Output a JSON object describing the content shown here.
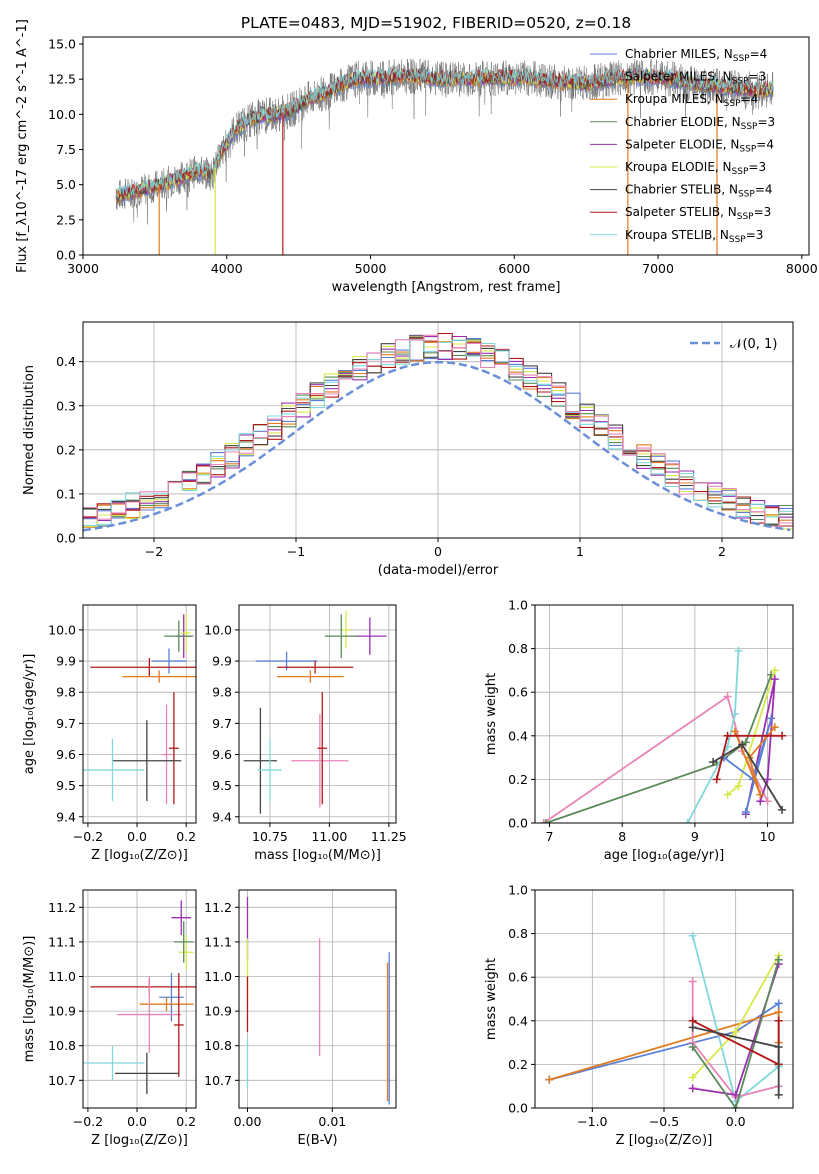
{
  "colors": {
    "chabrier_miles": "#5b7fd6",
    "salpeter_miles": "#8a8a8a",
    "kroupa_miles": "#e07b1f",
    "chabrier_elodie": "#5a8a5a",
    "salpeter_elodie": "#9a30b0",
    "kroupa_elodie": "#d8e84a",
    "chabrier_stelib": "#444444",
    "salpeter_stelib": "#b21818",
    "kroupa_stelib": "#80d8dc",
    "pink": "#e885b8",
    "normal": "#6a8fd8",
    "grid": "#b0b0b0"
  },
  "chart_data": [
    {
      "id": "spectrum",
      "type": "line",
      "title": "PLATE=0483, MJD=51902, FIBERID=0520, z=0.18",
      "xlabel": "wavelength [Angstrom, rest frame]",
      "ylabel": "Flux [f_λ10^-17 erg cm^-2 s^-1 A^-1]",
      "xlim": [
        3000,
        8050
      ],
      "ylim": [
        0,
        15.5
      ],
      "xticks": [
        3000,
        4000,
        5000,
        6000,
        7000,
        8000
      ],
      "yticks": [
        0.0,
        2.5,
        5.0,
        7.5,
        10.0,
        12.5,
        15.0
      ],
      "ytick_labels": [
        "0.0",
        "2.5",
        "5.0",
        "7.5",
        "10.0",
        "12.5",
        "15.0"
      ],
      "grid": false,
      "legend_position": "top-right",
      "legend": [
        {
          "label": "Chabrier MILES, N",
          "sub": "SSP",
          "tail": "=4",
          "color_key": "chabrier_miles"
        },
        {
          "label": "Salpeter MILES, N",
          "sub": "SSP",
          "tail": "=3",
          "color_key": "salpeter_miles"
        },
        {
          "label": "Kroupa MILES, N",
          "sub": "SSP",
          "tail": "=4",
          "color_key": "kroupa_miles"
        },
        {
          "label": "Chabrier ELODIE, N",
          "sub": "SSP",
          "tail": "=3",
          "color_key": "chabrier_elodie"
        },
        {
          "label": "Salpeter ELODIE, N",
          "sub": "SSP",
          "tail": "=4",
          "color_key": "salpeter_elodie"
        },
        {
          "label": "Kroupa ELODIE, N",
          "sub": "SSP",
          "tail": "=3",
          "color_key": "kroupa_elodie"
        },
        {
          "label": "Chabrier STELIB, N",
          "sub": "SSP",
          "tail": "=4",
          "color_key": "chabrier_stelib"
        },
        {
          "label": "Salpeter STELIB, N",
          "sub": "SSP",
          "tail": "=3",
          "color_key": "salpeter_stelib"
        },
        {
          "label": "Kroupa STELIB, N",
          "sub": "SSP",
          "tail": "=3",
          "color_key": "kroupa_stelib"
        }
      ],
      "envelope": [
        [
          3230,
          4.2
        ],
        [
          3400,
          4.6
        ],
        [
          3550,
          5.0
        ],
        [
          3700,
          5.6
        ],
        [
          3800,
          6.0
        ],
        [
          3900,
          5.7
        ],
        [
          3950,
          7.0
        ],
        [
          4050,
          8.8
        ],
        [
          4150,
          9.6
        ],
        [
          4250,
          9.9
        ],
        [
          4350,
          10.0
        ],
        [
          4450,
          10.3
        ],
        [
          4550,
          11.0
        ],
        [
          4700,
          11.6
        ],
        [
          4900,
          12.5
        ],
        [
          5100,
          12.6
        ],
        [
          5300,
          12.7
        ],
        [
          5500,
          12.5
        ],
        [
          5700,
          12.5
        ],
        [
          5900,
          12.6
        ],
        [
          6100,
          12.6
        ],
        [
          6300,
          12.3
        ],
        [
          6500,
          12.2
        ],
        [
          6700,
          12.5
        ],
        [
          6900,
          12.7
        ],
        [
          7100,
          12.5
        ],
        [
          7300,
          12.1
        ],
        [
          7500,
          11.9
        ],
        [
          7700,
          11.7
        ],
        [
          7800,
          11.8
        ]
      ],
      "noise_amplitude": 1.3,
      "dips": [
        {
          "x": 3530,
          "color_key": "kroupa_miles"
        },
        {
          "x": 3920,
          "color_key": "kroupa_elodie"
        },
        {
          "x": 4390,
          "color_key": "salpeter_stelib"
        },
        {
          "x": 6790,
          "color_key": "kroupa_miles"
        },
        {
          "x": 7410,
          "color_key": "kroupa_miles"
        }
      ]
    },
    {
      "id": "residual_hist",
      "type": "step",
      "xlabel": "(data-model)/error",
      "ylabel": "Normed distribution",
      "xlim": [
        -2.5,
        2.5
      ],
      "ylim": [
        0,
        0.49
      ],
      "xticks": [
        -2,
        -1,
        0,
        1,
        2
      ],
      "xtick_labels": [
        "−2",
        "−1",
        "0",
        "1",
        "2"
      ],
      "yticks": [
        0.0,
        0.1,
        0.2,
        0.3,
        0.4
      ],
      "ytick_labels": [
        "0.0",
        "0.1",
        "0.2",
        "0.3",
        "0.4"
      ],
      "grid": true,
      "legend_position": "top-right",
      "normal_label": "𝒩(0, 1)",
      "bin_width": 0.1,
      "bin_start": -2.5
    },
    {
      "id": "age_vs_Z",
      "type": "errorbar",
      "xlabel": "Z [log₁₀(Z/Z⊙)]",
      "ylabel": "age  [log₁₀(age/yr)]",
      "xlim": [
        -0.22,
        0.24
      ],
      "ylim": [
        9.38,
        10.08
      ],
      "xticks": [
        -0.2,
        0.0,
        0.2
      ],
      "xtick_labels": [
        "−0.2",
        "0.0",
        "0.2"
      ],
      "yticks": [
        9.4,
        9.5,
        9.6,
        9.7,
        9.8,
        9.9,
        10.0
      ],
      "ytick_labels": [
        "9.4",
        "9.5",
        "9.6",
        "9.7",
        "9.8",
        "9.9",
        "10.0"
      ],
      "grid": true,
      "points": [
        {
          "x": 0.13,
          "y": 9.9,
          "xerr": 0.07,
          "yerr": 0.04,
          "color_key": "chabrier_miles"
        },
        {
          "x": 0.19,
          "y": 9.98,
          "xerr": 0.03,
          "yerr": 0.07,
          "color_key": "salpeter_elodie"
        },
        {
          "x": 0.2,
          "y": 9.99,
          "xerr": 0.02,
          "yerr": 0.06,
          "color_key": "kroupa_elodie"
        },
        {
          "x": 0.17,
          "y": 9.98,
          "xerr": 0.06,
          "yerr": 0.05,
          "color_key": "chabrier_elodie"
        },
        {
          "x": 0.05,
          "y": 9.88,
          "xerr": 0.24,
          "yerr": 0.03,
          "color_key": "salpeter_stelib"
        },
        {
          "x": 0.09,
          "y": 9.85,
          "xerr": 0.15,
          "yerr": 0.02,
          "color_key": "kroupa_miles"
        },
        {
          "x": 0.12,
          "y": 9.6,
          "xerr": 0.02,
          "yerr": 0.16,
          "color_key": "pink"
        },
        {
          "x": 0.15,
          "y": 9.62,
          "xerr": 0.02,
          "yerr": 0.18,
          "color_key": "salpeter_stelib"
        },
        {
          "x": 0.04,
          "y": 9.58,
          "xerr": 0.14,
          "yerr": 0.13,
          "color_key": "chabrier_stelib"
        },
        {
          "x": -0.1,
          "y": 9.55,
          "xerr": 0.13,
          "yerr": 0.1,
          "color_key": "kroupa_stelib"
        }
      ]
    },
    {
      "id": "age_vs_mass",
      "type": "errorbar",
      "xlabel": "mass [log₁₀(M/M⊙)]",
      "ylabel": "",
      "xlim": [
        10.62,
        11.28
      ],
      "ylim": [
        9.38,
        10.08
      ],
      "xticks": [
        10.75,
        11.0,
        11.25
      ],
      "xtick_labels": [
        "10.75",
        "11.00",
        "11.25"
      ],
      "yticks": [
        9.4,
        9.5,
        9.6,
        9.7,
        9.8,
        9.9,
        10.0
      ],
      "ytick_labels": [
        "9.4",
        "9.5",
        "9.6",
        "9.7",
        "9.8",
        "9.9",
        "10.0"
      ],
      "grid": true,
      "points": [
        {
          "x": 10.82,
          "y": 9.9,
          "xerr": 0.13,
          "yerr": 0.03,
          "color_key": "chabrier_miles"
        },
        {
          "x": 11.17,
          "y": 9.98,
          "xerr": 0.07,
          "yerr": 0.06,
          "color_key": "salpeter_elodie"
        },
        {
          "x": 11.07,
          "y": 10.0,
          "xerr": 0.02,
          "yerr": 0.06,
          "color_key": "kroupa_elodie"
        },
        {
          "x": 11.05,
          "y": 9.98,
          "xerr": 0.07,
          "yerr": 0.07,
          "color_key": "chabrier_elodie"
        },
        {
          "x": 10.94,
          "y": 9.88,
          "xerr": 0.16,
          "yerr": 0.02,
          "color_key": "salpeter_stelib"
        },
        {
          "x": 10.92,
          "y": 9.85,
          "xerr": 0.14,
          "yerr": 0.02,
          "color_key": "kroupa_miles"
        },
        {
          "x": 10.96,
          "y": 9.58,
          "xerr": 0.12,
          "yerr": 0.15,
          "color_key": "pink"
        },
        {
          "x": 10.97,
          "y": 9.62,
          "xerr": 0.02,
          "yerr": 0.18,
          "color_key": "salpeter_stelib"
        },
        {
          "x": 10.71,
          "y": 9.58,
          "xerr": 0.07,
          "yerr": 0.17,
          "color_key": "chabrier_stelib"
        },
        {
          "x": 10.75,
          "y": 9.55,
          "xerr": 0.05,
          "yerr": 0.1,
          "color_key": "kroupa_stelib"
        }
      ]
    },
    {
      "id": "weight_vs_age",
      "type": "line",
      "xlabel": "age  [log₁₀(age/yr)]",
      "ylabel": "mass weight",
      "xlim": [
        6.8,
        10.35
      ],
      "ylim": [
        0,
        1.0
      ],
      "xticks": [
        7,
        8,
        9,
        10
      ],
      "xtick_labels": [
        "7",
        "8",
        "9",
        "10"
      ],
      "yticks": [
        0.0,
        0.2,
        0.4,
        0.6,
        0.8,
        1.0
      ],
      "ytick_labels": [
        "0.0",
        "0.2",
        "0.4",
        "0.6",
        "0.8",
        "1.0"
      ],
      "grid": true,
      "series": [
        {
          "color_key": "pink",
          "x": [
            6.92,
            9.45,
            9.65,
            10.0
          ],
          "y": [
            0.0,
            0.58,
            0.33,
            0.1
          ]
        },
        {
          "color_key": "chabrier_elodie",
          "x": [
            6.95,
            9.3,
            9.7,
            10.05
          ],
          "y": [
            0.0,
            0.27,
            0.37,
            0.68
          ]
        },
        {
          "color_key": "kroupa_stelib",
          "x": [
            8.9,
            9.45,
            9.55,
            9.6
          ],
          "y": [
            0.0,
            0.35,
            0.5,
            0.79
          ]
        },
        {
          "color_key": "kroupa_elodie",
          "x": [
            9.45,
            9.6,
            10.1
          ],
          "y": [
            0.13,
            0.17,
            0.7
          ]
        },
        {
          "color_key": "salpeter_elodie",
          "x": [
            9.7,
            10.1,
            10.0,
            9.9
          ],
          "y": [
            0.04,
            0.66,
            0.2,
            0.1
          ]
        },
        {
          "color_key": "chabrier_miles",
          "x": [
            9.4,
            9.8,
            10.05,
            9.7
          ],
          "y": [
            0.3,
            0.2,
            0.48,
            0.05
          ]
        },
        {
          "color_key": "kroupa_miles",
          "x": [
            9.55,
            9.9,
            9.75,
            10.1
          ],
          "y": [
            0.42,
            0.13,
            0.3,
            0.44
          ]
        },
        {
          "color_key": "salpeter_stelib",
          "x": [
            9.3,
            9.45,
            10.2
          ],
          "y": [
            0.2,
            0.4,
            0.4
          ]
        },
        {
          "color_key": "chabrier_stelib",
          "x": [
            9.25,
            9.65,
            10.2
          ],
          "y": [
            0.28,
            0.36,
            0.06
          ]
        }
      ]
    },
    {
      "id": "mass_vs_Z",
      "type": "errorbar",
      "xlabel": "Z [log₁₀(Z/Z⊙)]",
      "ylabel": "mass [log₁₀(M/M⊙)]",
      "xlim": [
        -0.22,
        0.24
      ],
      "ylim": [
        10.62,
        11.25
      ],
      "xticks": [
        -0.2,
        0.0,
        0.2
      ],
      "xtick_labels": [
        "−0.2",
        "0.0",
        "0.2"
      ],
      "yticks": [
        10.7,
        10.8,
        10.9,
        11.0,
        11.1,
        11.2
      ],
      "ytick_labels": [
        "10.7",
        "10.8",
        "10.9",
        "11.0",
        "11.1",
        "11.2"
      ],
      "grid": true,
      "points": [
        {
          "x": 0.14,
          "y": 10.94,
          "xerr": 0.05,
          "yerr": 0.07,
          "color_key": "chabrier_miles"
        },
        {
          "x": 0.18,
          "y": 11.17,
          "xerr": 0.04,
          "yerr": 0.05,
          "color_key": "salpeter_elodie"
        },
        {
          "x": 0.2,
          "y": 11.07,
          "xerr": 0.03,
          "yerr": 0.05,
          "color_key": "kroupa_elodie"
        },
        {
          "x": 0.19,
          "y": 11.1,
          "xerr": 0.04,
          "yerr": 0.06,
          "color_key": "chabrier_elodie"
        },
        {
          "x": 0.05,
          "y": 10.97,
          "xerr": 0.24,
          "yerr": 0.02,
          "color_key": "salpeter_stelib"
        },
        {
          "x": 0.12,
          "y": 10.92,
          "xerr": 0.11,
          "yerr": 0.02,
          "color_key": "kroupa_miles"
        },
        {
          "x": 0.05,
          "y": 10.89,
          "xerr": 0.13,
          "yerr": 0.11,
          "color_key": "pink"
        },
        {
          "x": 0.17,
          "y": 10.86,
          "xerr": 0.02,
          "yerr": 0.15,
          "color_key": "salpeter_stelib"
        },
        {
          "x": 0.04,
          "y": 10.72,
          "xerr": 0.13,
          "yerr": 0.06,
          "color_key": "chabrier_stelib"
        },
        {
          "x": -0.1,
          "y": 10.75,
          "xerr": 0.13,
          "yerr": 0.05,
          "color_key": "kroupa_stelib"
        }
      ]
    },
    {
      "id": "mass_vs_ebv",
      "type": "errorbar",
      "xlabel": "E(B-V)",
      "ylabel": "",
      "xlim": [
        -0.001,
        0.0175
      ],
      "ylim": [
        10.62,
        11.25
      ],
      "xticks": [
        0.0,
        0.01
      ],
      "xtick_labels": [
        "0.00",
        "0.01"
      ],
      "yticks": [
        10.7,
        10.8,
        10.9,
        11.0,
        11.1,
        11.2
      ],
      "ytick_labels": [
        "10.7",
        "10.8",
        "10.9",
        "11.0",
        "11.1",
        "11.2"
      ],
      "grid": true,
      "points": [
        {
          "x": 0.0,
          "y": 11.14,
          "xerr": 0,
          "yerr": 0.09,
          "color_key": "salpeter_elodie"
        },
        {
          "x": 0.0,
          "y": 11.02,
          "xerr": 0,
          "yerr": 0.09,
          "color_key": "kroupa_elodie"
        },
        {
          "x": 0.0,
          "y": 10.92,
          "xerr": 0,
          "yerr": 0.08,
          "color_key": "salpeter_stelib"
        },
        {
          "x": 0.0,
          "y": 10.75,
          "xerr": 0,
          "yerr": 0.07,
          "color_key": "kroupa_stelib"
        },
        {
          "x": 0.0085,
          "y": 10.94,
          "xerr": 0,
          "yerr": 0.17,
          "color_key": "pink"
        },
        {
          "x": 0.0167,
          "y": 10.85,
          "xerr": 0,
          "yerr": 0.22,
          "color_key": "chabrier_miles"
        },
        {
          "x": 0.0165,
          "y": 10.84,
          "xerr": 0,
          "yerr": 0.2,
          "color_key": "kroupa_miles"
        }
      ]
    },
    {
      "id": "weight_vs_Z",
      "type": "line",
      "xlabel": "Z [log₁₀(Z/Z⊙)]",
      "ylabel": "mass weight",
      "xlim": [
        -1.4,
        0.4
      ],
      "ylim": [
        0,
        1.0
      ],
      "xticks": [
        -1.0,
        -0.5,
        0.0
      ],
      "xtick_labels": [
        "−1.0",
        "−0.5",
        "0.0"
      ],
      "yticks": [
        0.0,
        0.2,
        0.4,
        0.6,
        0.8,
        1.0
      ],
      "ytick_labels": [
        "0.0",
        "0.2",
        "0.4",
        "0.6",
        "0.8",
        "1.0"
      ],
      "grid": true,
      "series": [
        {
          "color_key": "chabrier_miles",
          "x": [
            -1.3,
            0.0,
            0.3,
            0.3
          ],
          "y": [
            0.13,
            0.35,
            0.48,
            0.2
          ]
        },
        {
          "color_key": "kroupa_miles",
          "x": [
            -1.3,
            0.3,
            0.3
          ],
          "y": [
            0.13,
            0.44,
            0.3
          ]
        },
        {
          "color_key": "kroupa_stelib",
          "x": [
            -0.3,
            0.0,
            0.3
          ],
          "y": [
            0.79,
            0.03,
            0.19
          ]
        },
        {
          "color_key": "pink",
          "x": [
            -0.3,
            -0.3,
            0.0,
            0.3
          ],
          "y": [
            0.58,
            0.3,
            0.05,
            0.1
          ]
        },
        {
          "color_key": "kroupa_elodie",
          "x": [
            -0.3,
            0.0,
            0.3
          ],
          "y": [
            0.14,
            0.35,
            0.7
          ]
        },
        {
          "color_key": "salpeter_elodie",
          "x": [
            -0.3,
            0.0,
            0.3
          ],
          "y": [
            0.09,
            0.06,
            0.66
          ]
        },
        {
          "color_key": "chabrier_elodie",
          "x": [
            -0.3,
            0.0,
            0.3
          ],
          "y": [
            0.28,
            0.0,
            0.68
          ]
        },
        {
          "color_key": "salpeter_stelib",
          "x": [
            -0.3,
            0.3,
            0.3
          ],
          "y": [
            0.4,
            0.2,
            0.4
          ]
        },
        {
          "color_key": "chabrier_stelib",
          "x": [
            -0.3,
            0.3,
            0.3
          ],
          "y": [
            0.37,
            0.28,
            0.06
          ]
        }
      ]
    }
  ]
}
